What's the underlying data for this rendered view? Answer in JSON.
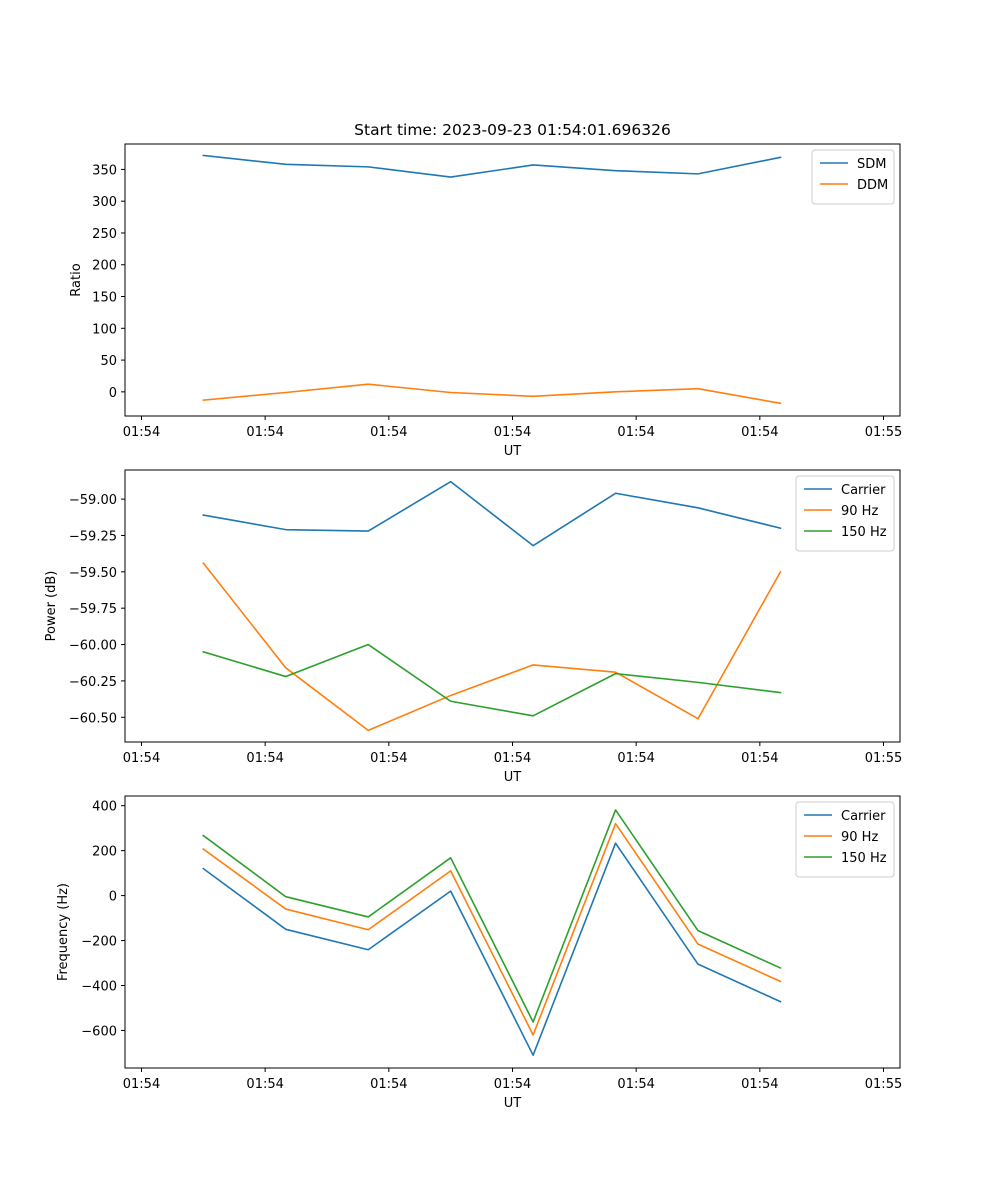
{
  "chart_data": [
    {
      "type": "line",
      "title": "Start time: 2023-09-23 01:54:01.696326",
      "xlabel": "UT",
      "ylabel": "Ratio",
      "xlim": [
        -0.2,
        9.2
      ],
      "ylim": [
        -38,
        390
      ],
      "x": [
        0.75,
        1.75,
        2.75,
        3.75,
        4.75,
        5.75,
        6.75,
        7.75
      ],
      "x_ticks": [
        0,
        1.5,
        3,
        4.5,
        6,
        7.5,
        9
      ],
      "x_tick_labels": [
        "01:54",
        "01:54",
        "01:54",
        "01:54",
        "01:54",
        "01:54",
        "01:55"
      ],
      "y_ticks": [
        0,
        50,
        100,
        150,
        200,
        250,
        300,
        350
      ],
      "y_tick_labels": [
        "0",
        "50",
        "100",
        "150",
        "200",
        "250",
        "300",
        "350"
      ],
      "legend_position": "top-right",
      "series": [
        {
          "name": "SDM",
          "color": "#1f77b4",
          "values": [
            372,
            358,
            354,
            338,
            357,
            348,
            343,
            369
          ]
        },
        {
          "name": "DDM",
          "color": "#ff7f0e",
          "values": [
            -13,
            -1,
            12,
            -1,
            -7,
            0,
            5,
            -18
          ]
        }
      ]
    },
    {
      "type": "line",
      "title": "",
      "xlabel": "UT",
      "ylabel": "Power (dB)",
      "xlim": [
        -0.2,
        9.2
      ],
      "ylim": [
        -60.67,
        -58.8
      ],
      "x": [
        0.75,
        1.75,
        2.75,
        3.75,
        4.75,
        5.75,
        6.75,
        7.75
      ],
      "x_ticks": [
        0,
        1.5,
        3,
        4.5,
        6,
        7.5,
        9
      ],
      "x_tick_labels": [
        "01:54",
        "01:54",
        "01:54",
        "01:54",
        "01:54",
        "01:54",
        "01:55"
      ],
      "y_ticks": [
        -60.5,
        -60.25,
        -60.0,
        -59.75,
        -59.5,
        -59.25,
        -59.0
      ],
      "y_tick_labels": [
        "−60.50",
        "−60.25",
        "−60.00",
        "−59.75",
        "−59.50",
        "−59.25",
        "−59.00"
      ],
      "legend_position": "top-right",
      "series": [
        {
          "name": "Carrier",
          "color": "#1f77b4",
          "values": [
            -59.11,
            -59.21,
            -59.22,
            -58.88,
            -59.32,
            -58.96,
            -59.06,
            -59.2
          ]
        },
        {
          "name": "90 Hz",
          "color": "#ff7f0e",
          "values": [
            -59.44,
            -60.16,
            -60.59,
            -60.35,
            -60.14,
            -60.19,
            -60.51,
            -59.5
          ]
        },
        {
          "name": "150 Hz",
          "color": "#2ca02c",
          "values": [
            -60.05,
            -60.22,
            -60.0,
            -60.39,
            -60.49,
            -60.2,
            -60.26,
            -60.33
          ]
        }
      ]
    },
    {
      "type": "line",
      "title": "",
      "xlabel": "UT",
      "ylabel": "Frequency (Hz)",
      "xlim": [
        -0.2,
        9.2
      ],
      "ylim": [
        -767,
        443
      ],
      "x": [
        0.75,
        1.75,
        2.75,
        3.75,
        4.75,
        5.75,
        6.75,
        7.75
      ],
      "x_ticks": [
        0,
        1.5,
        3,
        4.5,
        6,
        7.5,
        9
      ],
      "x_tick_labels": [
        "01:54",
        "01:54",
        "01:54",
        "01:54",
        "01:54",
        "01:54",
        "01:55"
      ],
      "y_ticks": [
        -600,
        -400,
        -200,
        0,
        200,
        400
      ],
      "y_tick_labels": [
        "−600",
        "−400",
        "−200",
        "0",
        "200",
        "400"
      ],
      "legend_position": "top-right",
      "series": [
        {
          "name": "Carrier",
          "color": "#1f77b4",
          "values": [
            120,
            -150,
            -241,
            20,
            -710,
            233,
            -305,
            -472
          ]
        },
        {
          "name": "90 Hz",
          "color": "#ff7f0e",
          "values": [
            207,
            -60,
            -152,
            110,
            -620,
            320,
            -216,
            -382
          ]
        },
        {
          "name": "150 Hz",
          "color": "#2ca02c",
          "values": [
            267,
            -5,
            -95,
            168,
            -562,
            381,
            -156,
            -322
          ]
        }
      ]
    }
  ]
}
